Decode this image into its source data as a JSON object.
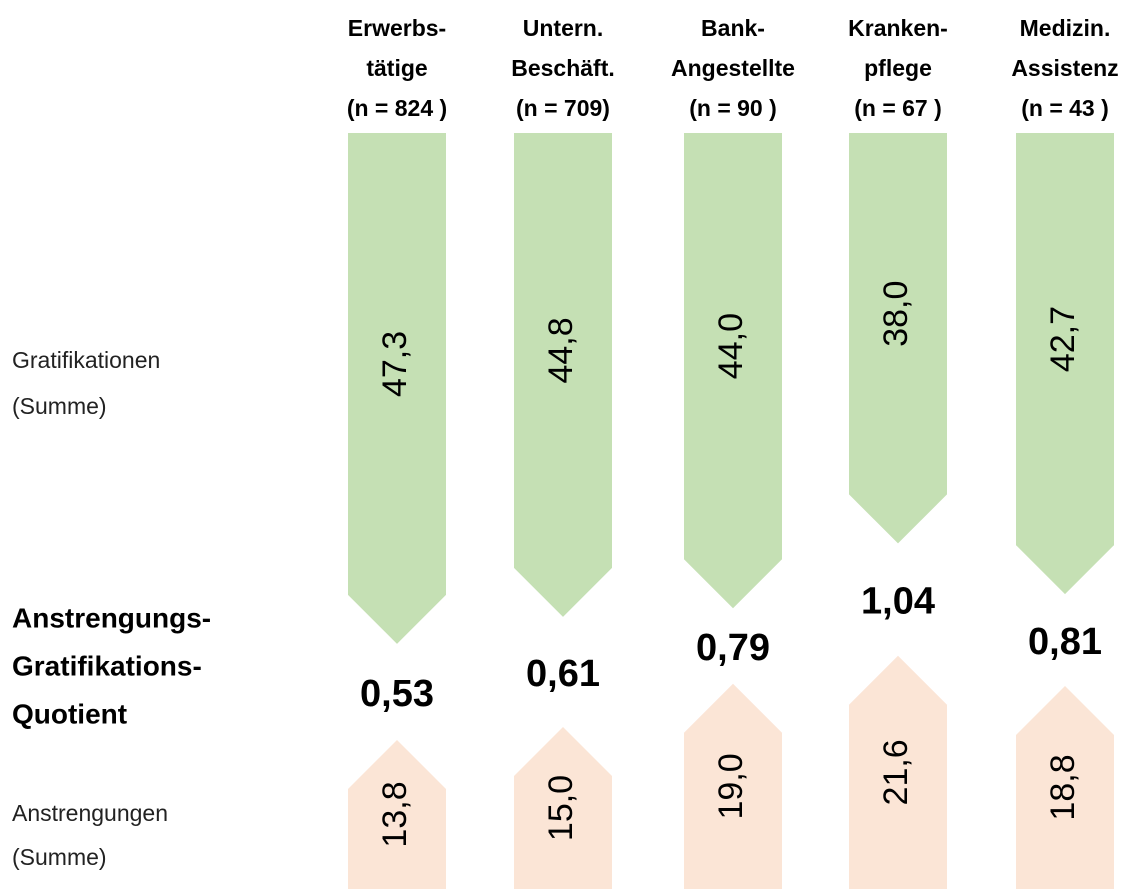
{
  "chart_data": {
    "type": "arrow",
    "categories": [
      [
        "Erwerbs-",
        "tätige",
        "(n = 824 )"
      ],
      [
        "Untern.",
        "Beschäft.",
        "(n = 709)"
      ],
      [
        "Bank-",
        "Angestellte",
        "(n = 90 )"
      ],
      [
        "Kranken-",
        "pflege",
        "(n = 67 )"
      ],
      [
        "Medizin.",
        "Assistenz",
        "(n = 43 )"
      ]
    ],
    "series": [
      {
        "name": [
          "Gratifikationen",
          "(Summe)"
        ],
        "color": "#c5e0b4",
        "values": [
          47.3,
          44.8,
          44.0,
          38.0,
          42.7
        ],
        "value_labels": [
          "47,3",
          "44,8",
          "44,0",
          "38,0",
          "42,7"
        ]
      },
      {
        "name": [
          "Anstrengungen",
          "(Summe)"
        ],
        "color": "#fbe5d6",
        "values": [
          13.8,
          15.0,
          19.0,
          21.6,
          18.8
        ],
        "value_labels": [
          "13,8",
          "15,0",
          "19,0",
          "21,6",
          "18,8"
        ]
      }
    ],
    "ratio": {
      "name": [
        "Anstrengungs-",
        "Gratifikations-",
        "Quotient"
      ],
      "values": [
        0.53,
        0.61,
        0.79,
        1.04,
        0.81
      ],
      "value_labels": [
        "0,53",
        "0,61",
        "0,79",
        "1,04",
        "0,81"
      ]
    }
  }
}
